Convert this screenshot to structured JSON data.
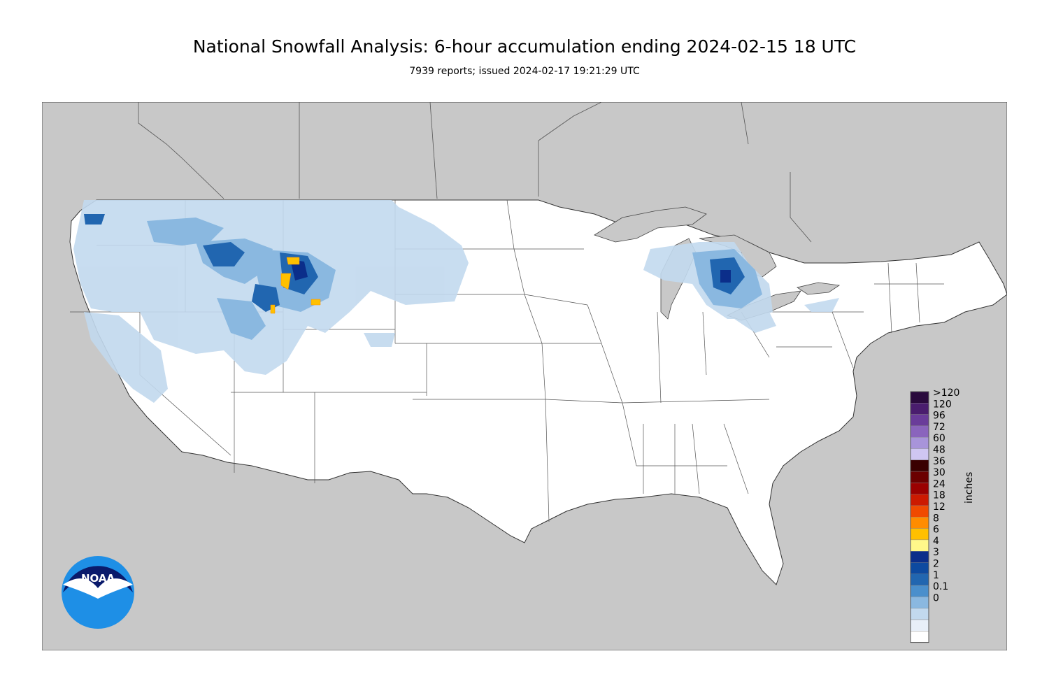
{
  "title": "National Snowfall Analysis: 6-hour accumulation ending 2024-02-15 18 UTC",
  "subtitle": "7939 reports; issued 2024-02-17 19:21:29 UTC",
  "legend": {
    "units": "inches",
    "bins": [
      {
        "label": ">120",
        "color": "#2a0a3d"
      },
      {
        "label": "120",
        "color": "#4a1d6e"
      },
      {
        "label": "96",
        "color": "#6a3c9a"
      },
      {
        "label": "72",
        "color": "#8a64bd"
      },
      {
        "label": "60",
        "color": "#a894da"
      },
      {
        "label": "48",
        "color": "#cfc6f2"
      },
      {
        "label": "36",
        "color": "#3a0000"
      },
      {
        "label": "30",
        "color": "#6b0000"
      },
      {
        "label": "24",
        "color": "#9a0000"
      },
      {
        "label": "18",
        "color": "#cc1a00"
      },
      {
        "label": "12",
        "color": "#f04a00"
      },
      {
        "label": "8",
        "color": "#ff8c00"
      },
      {
        "label": "6",
        "color": "#ffc000"
      },
      {
        "label": "4",
        "color": "#fff88a"
      },
      {
        "label": "3",
        "color": "#0b2e8a"
      },
      {
        "label": "2",
        "color": "#0d4aa0"
      },
      {
        "label": "1",
        "color": "#2166b0"
      },
      {
        "label": "0.1",
        "color": "#4a8fcc"
      },
      {
        "label": "0",
        "color": "#8ab8e0"
      },
      {
        "label": "",
        "color": "#c2d9ee"
      },
      {
        "label": "",
        "color": "#e8eff8"
      },
      {
        "label": "",
        "color": "#ffffff"
      }
    ]
  },
  "logo": {
    "text": "NOAA"
  },
  "colors": {
    "land_outside": "#c8c8c8",
    "water": "#c8c8c8",
    "conus": "#ffffff"
  }
}
